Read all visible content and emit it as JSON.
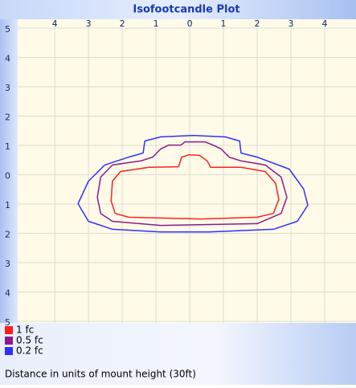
{
  "chart_data": {
    "type": "contour",
    "title": "Isofootcandle Plot",
    "note": "Distance in units of mount height (30ft)",
    "xlim": [
      -5.1,
      4.93
    ],
    "ylim": [
      -5,
      5.3
    ],
    "xticks": [
      {
        "value": -4,
        "label": "4"
      },
      {
        "value": -3,
        "label": "3"
      },
      {
        "value": -2,
        "label": "2"
      },
      {
        "value": -1,
        "label": "1"
      },
      0,
      1,
      2,
      3,
      4
    ],
    "yticks": [
      5,
      4,
      3,
      2,
      1,
      0,
      {
        "value": -1,
        "label": "1"
      },
      {
        "value": -2,
        "label": "2"
      },
      {
        "value": -3,
        "label": "3"
      },
      {
        "value": -4,
        "label": "4"
      },
      {
        "value": -5,
        "label": "5"
      }
    ],
    "grid": true,
    "series": [
      {
        "name": "1 fc",
        "color": "#ff2020",
        "x": [
          -2.33,
          -2.29,
          -2.05,
          -1.21,
          -0.33,
          -0.24,
          -0.02,
          0.29,
          0.52,
          0.62,
          1.52,
          2.24,
          2.55,
          2.64,
          2.48,
          2.0,
          0.33,
          -1.81,
          -2.21
        ],
        "values": [
          -0.9,
          -0.22,
          0.11,
          0.25,
          0.27,
          0.6,
          0.68,
          0.66,
          0.47,
          0.25,
          0.25,
          0.11,
          -0.3,
          -0.85,
          -1.32,
          -1.45,
          -1.51,
          -1.45,
          -1.32
        ]
      },
      {
        "name": "0.5 fc",
        "color": "#8b1a8b",
        "x": [
          -2.74,
          -2.64,
          -2.29,
          -1.45,
          -1.1,
          -0.86,
          -0.62,
          -0.26,
          -0.14,
          0.45,
          0.69,
          0.93,
          1.17,
          1.52,
          2.24,
          2.71,
          2.88,
          2.71,
          2.0,
          -0.86,
          -2.29,
          -2.64
        ],
        "values": [
          -0.77,
          -0.08,
          0.33,
          0.47,
          0.6,
          0.88,
          1.01,
          1.01,
          1.12,
          1.12,
          1.01,
          0.88,
          0.6,
          0.47,
          0.33,
          -0.08,
          -0.77,
          -1.32,
          -1.67,
          -1.73,
          -1.59,
          -1.32
        ]
      },
      {
        "name": "0.2 fc",
        "color": "#3030ff",
        "x": [
          -3.31,
          -3.0,
          -2.52,
          -1.81,
          -1.38,
          -1.33,
          -0.86,
          0.1,
          1.05,
          1.48,
          1.52,
          2.0,
          2.95,
          3.38,
          3.5,
          3.19,
          2.48,
          0.57,
          -0.86,
          -2.29,
          -3.0
        ],
        "values": [
          -0.99,
          -0.22,
          0.33,
          0.6,
          0.74,
          1.15,
          1.29,
          1.34,
          1.29,
          1.15,
          0.74,
          0.6,
          0.19,
          -0.49,
          -1.04,
          -1.59,
          -1.86,
          -1.95,
          -1.95,
          -1.86,
          -1.59
        ]
      }
    ]
  }
}
